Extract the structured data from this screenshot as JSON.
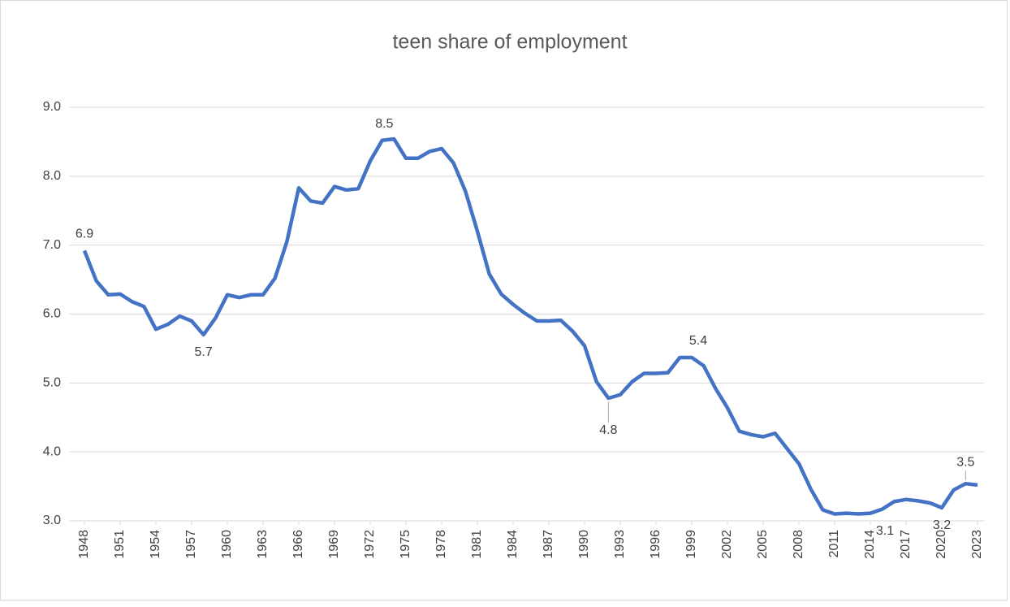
{
  "chart_data": {
    "type": "line",
    "title": "teen share of employment",
    "x": [
      1948,
      1949,
      1950,
      1951,
      1952,
      1953,
      1954,
      1955,
      1956,
      1957,
      1958,
      1959,
      1960,
      1961,
      1962,
      1963,
      1964,
      1965,
      1966,
      1967,
      1968,
      1969,
      1970,
      1971,
      1972,
      1973,
      1974,
      1975,
      1976,
      1977,
      1978,
      1979,
      1980,
      1981,
      1982,
      1983,
      1984,
      1985,
      1986,
      1987,
      1988,
      1989,
      1990,
      1991,
      1992,
      1993,
      1994,
      1995,
      1996,
      1997,
      1998,
      1999,
      2000,
      2001,
      2002,
      2003,
      2004,
      2005,
      2006,
      2007,
      2008,
      2009,
      2010,
      2011,
      2012,
      2013,
      2014,
      2015,
      2016,
      2017,
      2018,
      2019,
      2020,
      2021,
      2022,
      2023
    ],
    "series": [
      {
        "name": "teen share of employment",
        "color": "#4472c4",
        "values": [
          6.92,
          6.48,
          6.28,
          6.29,
          6.18,
          6.11,
          5.78,
          5.85,
          5.97,
          5.9,
          5.7,
          5.94,
          6.28,
          6.24,
          6.28,
          6.28,
          6.52,
          7.05,
          7.83,
          7.64,
          7.61,
          7.85,
          7.8,
          7.82,
          8.22,
          8.52,
          8.54,
          8.26,
          8.26,
          8.36,
          8.4,
          8.19,
          7.78,
          7.2,
          6.58,
          6.29,
          6.14,
          6.01,
          5.9,
          5.9,
          5.91,
          5.75,
          5.54,
          5.02,
          4.78,
          4.83,
          5.02,
          5.14,
          5.14,
          5.15,
          5.37,
          5.37,
          5.25,
          4.92,
          4.64,
          4.3,
          4.25,
          4.22,
          4.27,
          4.05,
          3.83,
          3.46,
          3.16,
          3.1,
          3.11,
          3.1,
          3.11,
          3.17,
          3.28,
          3.31,
          3.29,
          3.26,
          3.19,
          3.45,
          3.54,
          3.52
        ],
        "value_labels": [
          "6.9",
          null,
          null,
          null,
          null,
          null,
          null,
          null,
          null,
          null,
          "5.7",
          null,
          null,
          null,
          null,
          null,
          null,
          null,
          null,
          null,
          null,
          null,
          null,
          null,
          null,
          null,
          "8.5",
          null,
          null,
          null,
          null,
          null,
          null,
          null,
          null,
          null,
          null,
          null,
          null,
          null,
          null,
          null,
          null,
          null,
          "4.8",
          null,
          null,
          null,
          null,
          null,
          null,
          "5.4",
          null,
          null,
          null,
          null,
          null,
          null,
          null,
          null,
          null,
          null,
          null,
          null,
          null,
          null,
          "3.1",
          null,
          null,
          null,
          null,
          null,
          "3.2",
          null,
          "3.5",
          null
        ]
      }
    ],
    "xlim": [
      1948,
      2023
    ],
    "xticks": [
      1948,
      1951,
      1954,
      1957,
      1960,
      1963,
      1966,
      1969,
      1972,
      1975,
      1978,
      1981,
      1984,
      1987,
      1990,
      1993,
      1996,
      1999,
      2002,
      2005,
      2008,
      2011,
      2014,
      2017,
      2020,
      2023
    ],
    "ylim": [
      3,
      9
    ],
    "yticks": [
      {
        "value": 3,
        "label": "3.0"
      },
      {
        "value": 4,
        "label": "4.0"
      },
      {
        "value": 5,
        "label": "5.0"
      },
      {
        "value": 6,
        "label": "6.0"
      },
      {
        "value": 7,
        "label": "7.0"
      },
      {
        "value": 8,
        "label": "8.0"
      },
      {
        "value": 9,
        "label": "9.0"
      }
    ],
    "grid": true
  }
}
